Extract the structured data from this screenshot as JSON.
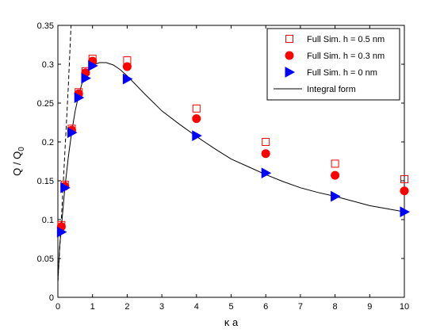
{
  "chart_data": {
    "type": "scatter",
    "xlabel": "κ a",
    "ylabel": "Q / Q",
    "ylabel_subscript": "0",
    "xlim": [
      0,
      10
    ],
    "ylim": [
      0,
      0.35
    ],
    "xticks": [
      "0",
      "1",
      "2",
      "3",
      "4",
      "5",
      "6",
      "7",
      "8",
      "9",
      "10"
    ],
    "yticks": [
      "0",
      "0.05",
      "0.1",
      "0.15",
      "0.2",
      "0.25",
      "0.3",
      "0.35"
    ],
    "grid": false,
    "legend_position": "top-right",
    "series": [
      {
        "name": "Full Sim. h = 0.5 nm",
        "marker": "open-square",
        "color": "#ff0000",
        "x": [
          0.1,
          0.2,
          0.4,
          0.6,
          0.8,
          1,
          2,
          4,
          6,
          8,
          10
        ],
        "y": [
          0.093,
          0.145,
          0.217,
          0.264,
          0.291,
          0.307,
          0.305,
          0.243,
          0.2,
          0.172,
          0.152
        ]
      },
      {
        "name": "Full Sim. h = 0.3 nm",
        "marker": "filled-circle",
        "color": "#ff0000",
        "x": [
          0.1,
          0.2,
          0.4,
          0.6,
          0.8,
          1,
          2,
          4,
          6,
          8,
          10
        ],
        "y": [
          0.091,
          0.143,
          0.215,
          0.262,
          0.289,
          0.304,
          0.297,
          0.23,
          0.185,
          0.157,
          0.137
        ]
      },
      {
        "name": "Full Sim. h = 0 nm",
        "marker": "filled-right-triangle",
        "color": "#0000ff",
        "x": [
          0.1,
          0.2,
          0.4,
          0.6,
          0.8,
          1,
          2,
          4,
          6,
          8,
          10
        ],
        "y": [
          0.084,
          0.141,
          0.212,
          0.257,
          0.282,
          0.298,
          0.281,
          0.208,
          0.16,
          0.13,
          0.11
        ]
      },
      {
        "name": "Integral form",
        "line": "solid",
        "color": "#000000",
        "x": [
          0,
          0.05,
          0.1,
          0.2,
          0.3,
          0.4,
          0.5,
          0.6,
          0.7,
          0.8,
          0.9,
          1.0,
          1.2,
          1.4,
          1.6,
          1.8,
          2.0,
          2.5,
          3.0,
          3.5,
          4.0,
          4.5,
          5.0,
          5.5,
          6.0,
          6.5,
          7.0,
          7.5,
          8.0,
          8.5,
          9.0,
          9.5,
          10.0
        ],
        "y": [
          0.02,
          0.065,
          0.09,
          0.14,
          0.18,
          0.213,
          0.24,
          0.26,
          0.276,
          0.287,
          0.295,
          0.299,
          0.302,
          0.302,
          0.299,
          0.293,
          0.285,
          0.262,
          0.24,
          0.223,
          0.207,
          0.192,
          0.178,
          0.168,
          0.158,
          0.149,
          0.141,
          0.135,
          0.13,
          0.124,
          0.118,
          0.114,
          0.11
        ]
      },
      {
        "line": "dashed",
        "color": "#000000",
        "x": [
          0,
          0.1,
          0.2,
          0.3,
          0.38
        ],
        "y": [
          0.02,
          0.1,
          0.185,
          0.27,
          0.35
        ]
      }
    ]
  }
}
